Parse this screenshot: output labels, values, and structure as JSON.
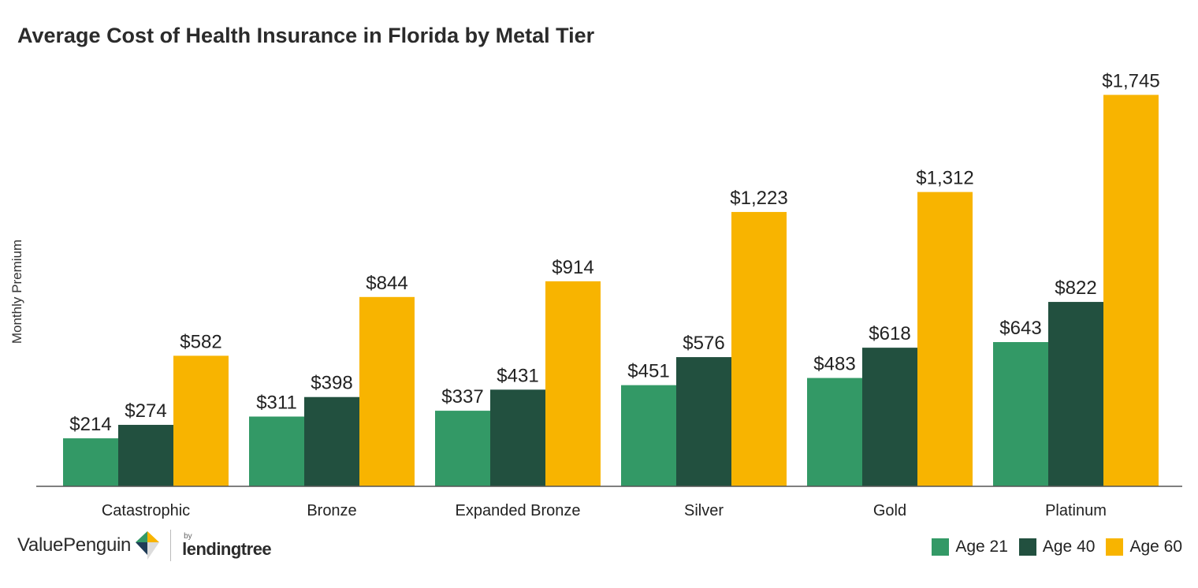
{
  "title": "Average Cost of Health Insurance in Florida by Metal Tier",
  "brand": {
    "name": "ValuePenguin",
    "by": "by",
    "partner": "lendingtree"
  },
  "colors": {
    "age21": "#339966",
    "age40": "#22503f",
    "age60": "#f8b400",
    "axis": "#555555"
  },
  "chart_data": {
    "type": "bar",
    "title": "Average Cost of Health Insurance in Florida by Metal Tier",
    "xlabel": "",
    "ylabel": "Monthly Premium",
    "ylim": [
      0,
      1800
    ],
    "grid": false,
    "legend_position": "bottom-right",
    "categories": [
      "Catastrophic",
      "Bronze",
      "Expanded Bronze",
      "Silver",
      "Gold",
      "Platinum"
    ],
    "series": [
      {
        "name": "Age 21",
        "values": [
          214,
          311,
          337,
          451,
          483,
          643
        ],
        "labels": [
          "$214",
          "$311",
          "$337",
          "$451",
          "$483",
          "$643"
        ]
      },
      {
        "name": "Age 40",
        "values": [
          274,
          398,
          431,
          576,
          618,
          822
        ],
        "labels": [
          "$274",
          "$398",
          "$431",
          "$576",
          "$618",
          "$822"
        ]
      },
      {
        "name": "Age 60",
        "values": [
          582,
          844,
          914,
          1223,
          1312,
          1745
        ],
        "labels": [
          "$582",
          "$844",
          "$914",
          "$1,223",
          "$1,312",
          "$1,745"
        ]
      }
    ]
  }
}
